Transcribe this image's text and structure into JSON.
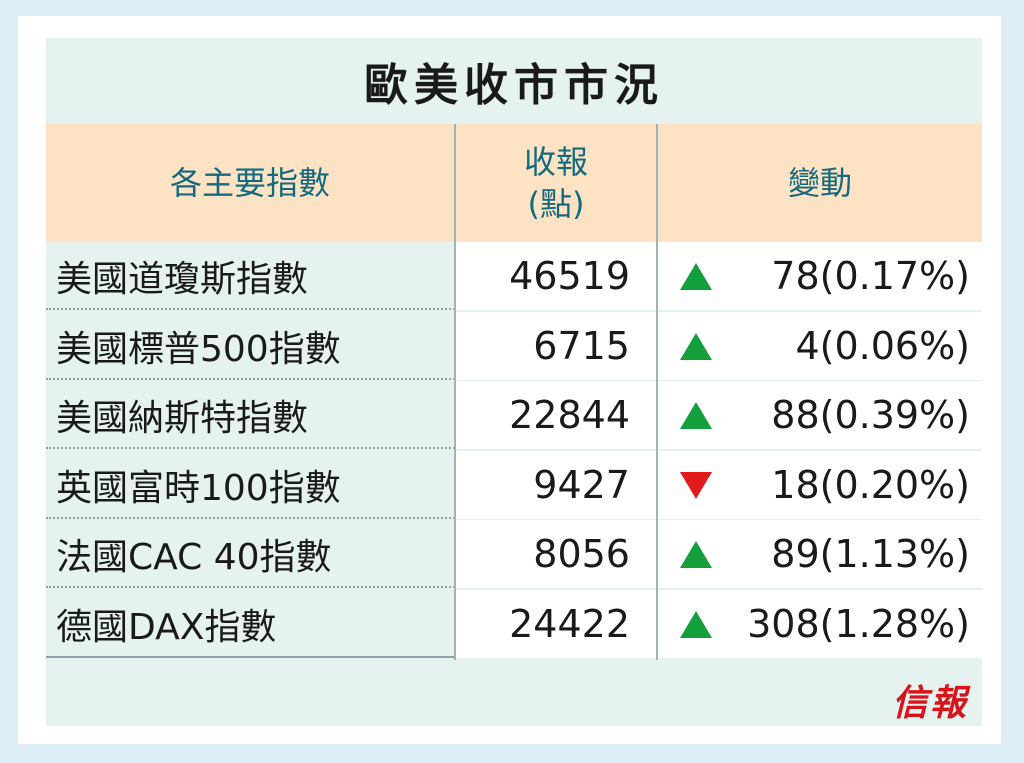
{
  "title": "歐美收市市況",
  "headers": {
    "index": "各主要指數",
    "close_line1": "收報",
    "close_line2": "(點)",
    "change": "變動"
  },
  "rows": [
    {
      "name": "美國道瓊斯指數",
      "close": "46519",
      "direction": "up",
      "change": "78(0.17%)"
    },
    {
      "name": "美國標普500指數",
      "close": "6715",
      "direction": "up",
      "change": "4(0.06%)"
    },
    {
      "name": "美國納斯特指數",
      "close": "22844",
      "direction": "up",
      "change": "88(0.39%)"
    },
    {
      "name": "英國富時100指數",
      "close": "9427",
      "direction": "down",
      "change": "18(0.20%)"
    },
    {
      "name": "法國CAC 40指數",
      "close": "8056",
      "direction": "up",
      "change": "89(1.13%)"
    },
    {
      "name": "德國DAX指數",
      "close": "24422",
      "direction": "up",
      "change": "308(1.28%)"
    }
  ],
  "source_logo": "信報",
  "colors": {
    "up": "#13a03c",
    "down": "#e01b1b",
    "header_bg": "#fde3c4",
    "header_text": "#13697e",
    "logo": "#d8141b"
  }
}
